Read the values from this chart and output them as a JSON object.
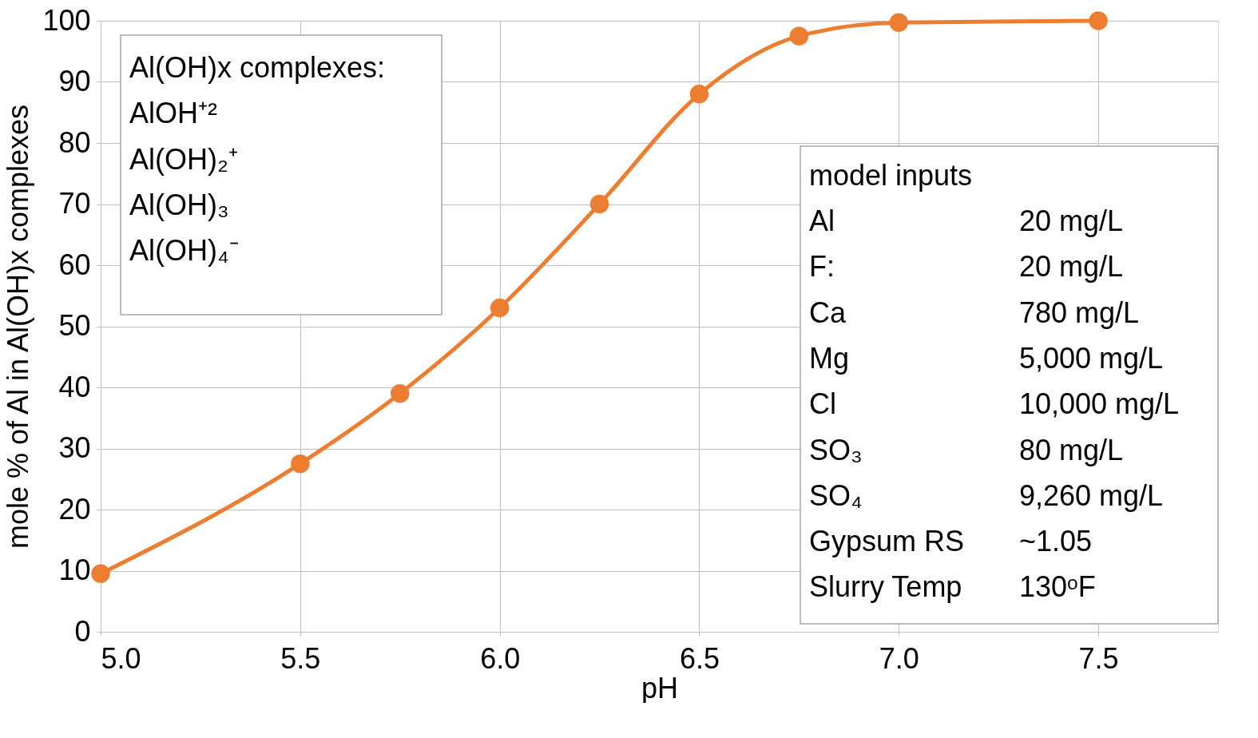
{
  "chart_data": {
    "type": "line",
    "xlabel": "pH",
    "ylabel": "mole % of Al in Al(OH)x complexes",
    "x": [
      5.0,
      5.5,
      5.75,
      6.0,
      6.25,
      6.5,
      6.75,
      7.0,
      7.5
    ],
    "series": [
      {
        "color": "#ed7d31",
        "values": [
          9.5,
          27.5,
          39,
          53,
          70,
          88,
          97.5,
          99.7,
          100
        ]
      }
    ],
    "xlim": [
      5.0,
      7.8
    ],
    "ylim": [
      0,
      100
    ],
    "xticks": [
      {
        "value": 5.0,
        "label": "5.0"
      },
      {
        "value": 5.5,
        "label": "5.5"
      },
      {
        "value": 6.0,
        "label": "6.0"
      },
      {
        "value": 6.5,
        "label": "6.5"
      },
      {
        "value": 7.0,
        "label": "7.0"
      },
      {
        "value": 7.5,
        "label": "7.5"
      }
    ],
    "yticks": [
      0,
      10,
      20,
      30,
      40,
      50,
      60,
      70,
      80,
      90,
      100
    ],
    "grid": true,
    "marker": "circle",
    "line_style": "solid",
    "annotations": [
      "Al(OH)x complexes:",
      "AlOH⁺²",
      "Al(OH)₂⁺",
      "Al(OH)₃",
      "Al(OH)₄⁻",
      "model inputs",
      "Al",
      "20 mg/L",
      "F:",
      "20 mg/L",
      "Ca",
      "780 mg/L",
      "Mg",
      "5,000 mg/L",
      "Cl",
      "10,000 mg/L",
      "SO₃",
      "80 mg/L",
      "SO₄",
      "9,260 mg/L",
      "Gypsum RS",
      "~1.05",
      "Slurry Temp",
      "130ᵒF"
    ]
  }
}
